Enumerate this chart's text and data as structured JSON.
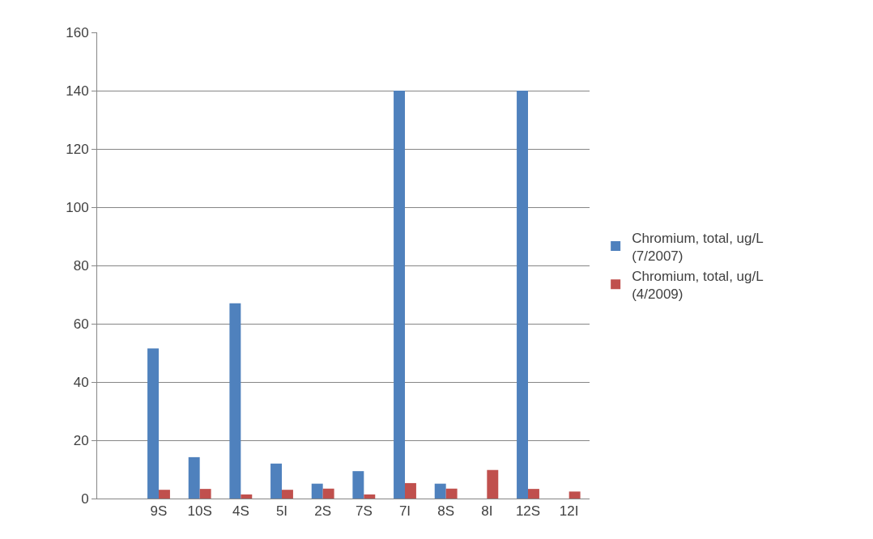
{
  "chart_data": {
    "type": "bar",
    "categories": [
      null,
      "9S",
      "10S",
      "4S",
      "5I",
      "2S",
      "7S",
      "7I",
      "8S",
      "8I",
      "12S",
      "12I"
    ],
    "series": [
      {
        "name": "Chromium, total, ug/L (7/2007)",
        "color": "#4f81bd",
        "values": [
          null,
          51.5,
          14.2,
          67,
          12,
          5.1,
          9.4,
          140,
          5.1,
          null,
          140,
          null
        ]
      },
      {
        "name": "Chromium, total, ug/L (4/2009)",
        "color": "#c0504d",
        "values": [
          null,
          3,
          3.3,
          1.4,
          3,
          3.4,
          1.4,
          5.3,
          3.4,
          9.8,
          3.3,
          2.4
        ]
      }
    ],
    "ylim": [
      0,
      160
    ],
    "yticks": [
      0,
      20,
      40,
      60,
      80,
      100,
      120,
      140,
      160
    ],
    "grid": "y",
    "legend": "right"
  }
}
